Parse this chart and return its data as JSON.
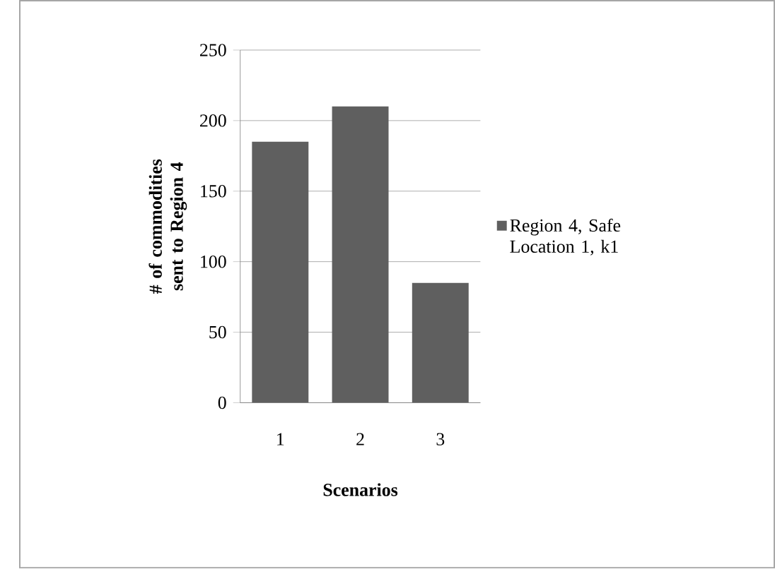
{
  "chart_data": {
    "type": "bar",
    "xlabel": "Scenarios",
    "ylabel": "# of commodities sent to Region 4",
    "categories": [
      "1",
      "2",
      "3"
    ],
    "series": [
      {
        "name": "Region 4, Safe Location 1, k1",
        "color": "#5f5f5f",
        "values": [
          185,
          210,
          85
        ]
      }
    ],
    "ylim": [
      0,
      250
    ],
    "yticks": [
      0,
      50,
      100,
      150,
      200,
      250
    ],
    "grid": "y",
    "legend": "right"
  }
}
